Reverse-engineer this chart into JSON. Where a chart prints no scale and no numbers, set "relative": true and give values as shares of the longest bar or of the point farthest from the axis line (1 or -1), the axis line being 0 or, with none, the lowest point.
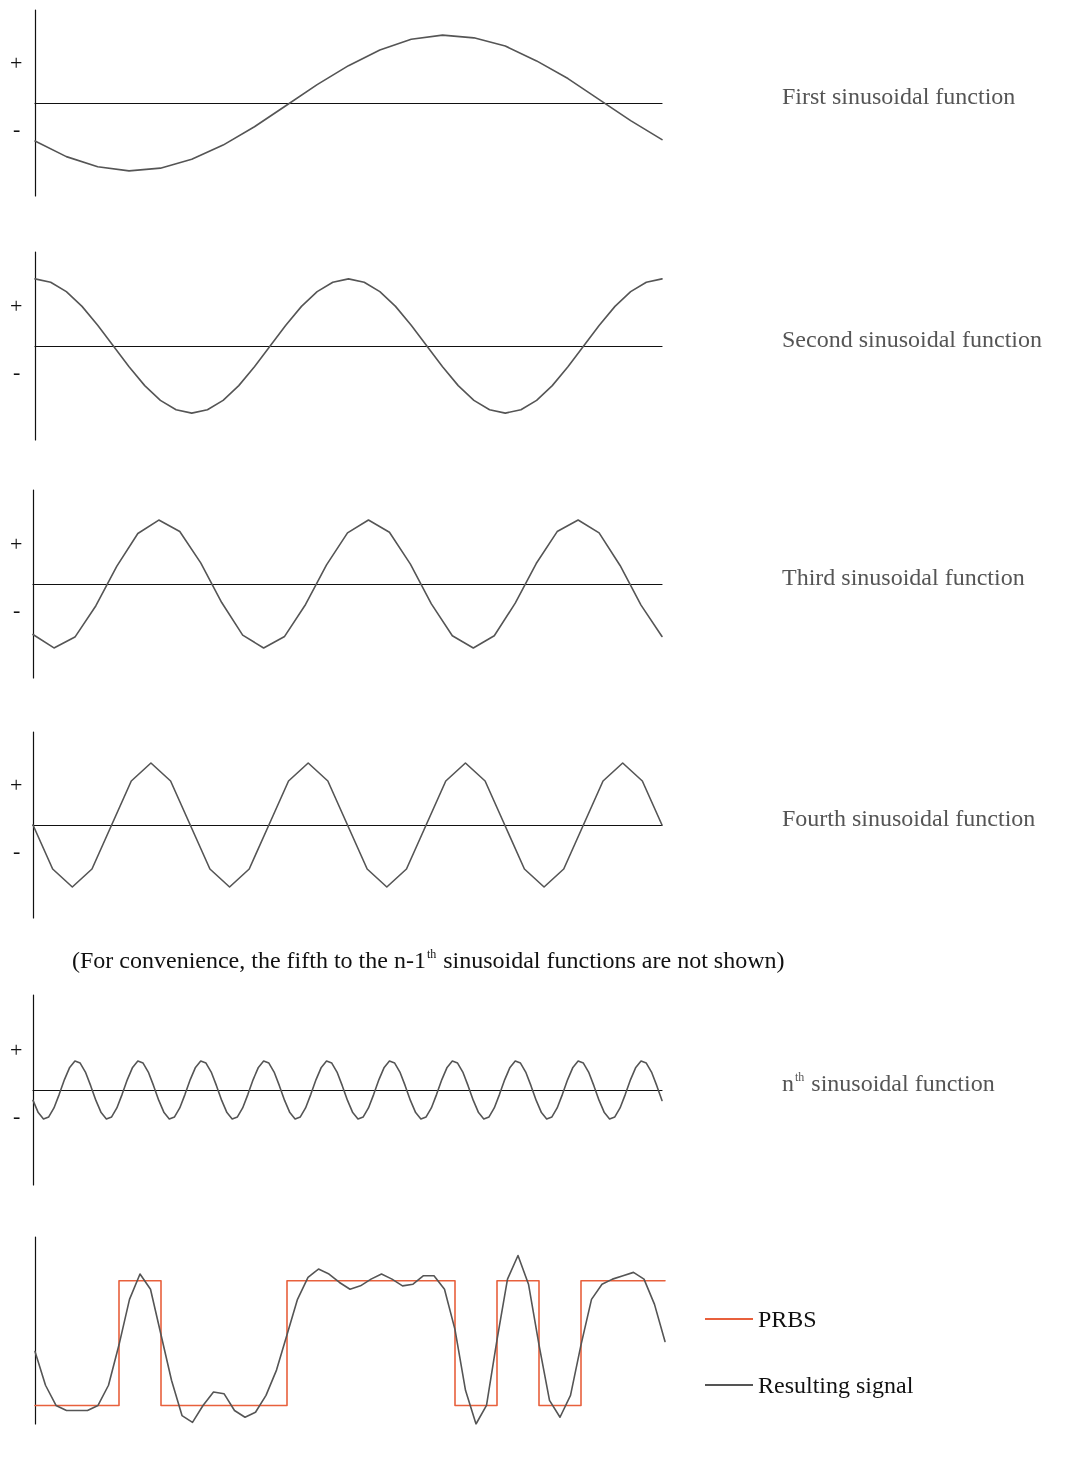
{
  "chart_data": [
    {
      "type": "line",
      "relative": true,
      "categories": [
        null,
        null,
        null,
        null,
        null,
        null,
        null,
        null,
        null,
        null,
        null,
        null,
        null,
        null,
        null,
        null,
        null,
        null,
        null,
        null,
        null
      ],
      "series": [
        {
          "name": "First sinusoidal function",
          "color": "#555555",
          "values": [
            -0.56,
            -0.79,
            -0.94,
            -1.0,
            -0.96,
            -0.83,
            -0.62,
            -0.35,
            -0.04,
            0.27,
            0.55,
            0.78,
            0.94,
            1.0,
            0.96,
            0.84,
            0.62,
            0.36,
            0.05,
            -0.26,
            -0.54
          ]
        }
      ],
      "annotations": [
        "+",
        "-"
      ],
      "grid": false,
      "legend": "right",
      "marker": "none"
    },
    {
      "type": "line",
      "relative": true,
      "categories": [
        null,
        null,
        null,
        null,
        null,
        null,
        null,
        null,
        null,
        null,
        null,
        null,
        null,
        null,
        null,
        null,
        null,
        null,
        null,
        null,
        null,
        null,
        null,
        null,
        null,
        null,
        null,
        null,
        null,
        null,
        null,
        null,
        null,
        null,
        null,
        null,
        null,
        null,
        null,
        null,
        null
      ],
      "series": [
        {
          "name": "Second sinusoidal function",
          "color": "#555555",
          "values": [
            1,
            0.95,
            0.81,
            0.59,
            0.31,
            0,
            -0.31,
            -0.59,
            -0.81,
            -0.95,
            -1,
            -0.95,
            -0.81,
            -0.59,
            -0.31,
            0,
            0.31,
            0.59,
            0.81,
            0.95,
            1,
            0.95,
            0.81,
            0.59,
            0.31,
            0,
            -0.31,
            -0.59,
            -0.81,
            -0.95,
            -1,
            -0.95,
            -0.81,
            -0.59,
            -0.31,
            0,
            0.31,
            0.59,
            0.81,
            0.95,
            1
          ]
        }
      ],
      "annotations": [
        "+",
        "-"
      ],
      "grid": false,
      "legend": "right",
      "marker": "none"
    },
    {
      "type": "line",
      "relative": true,
      "categories": [
        null,
        null,
        null,
        null,
        null,
        null,
        null,
        null,
        null,
        null,
        null,
        null,
        null,
        null,
        null,
        null,
        null,
        null,
        null,
        null,
        null,
        null,
        null,
        null,
        null,
        null,
        null,
        null,
        null,
        null,
        null
      ],
      "series": [
        {
          "name": "Third sinusoidal function",
          "color": "#555555",
          "values": [
            -0.79,
            -1.0,
            -0.83,
            -0.34,
            0.28,
            0.79,
            1.0,
            0.82,
            0.33,
            -0.29,
            -0.8,
            -1.0,
            -0.82,
            -0.32,
            0.3,
            0.8,
            1.0,
            0.81,
            0.31,
            -0.31,
            -0.81,
            -1.0,
            -0.81,
            -0.3,
            0.32,
            0.82,
            1.0,
            0.8,
            0.29,
            -0.33,
            -0.82
          ]
        }
      ],
      "annotations": [
        "+",
        "-"
      ],
      "grid": false,
      "legend": "right",
      "marker": "none"
    },
    {
      "type": "line",
      "relative": true,
      "categories": [
        null,
        null,
        null,
        null,
        null,
        null,
        null,
        null,
        null,
        null,
        null,
        null,
        null,
        null,
        null,
        null,
        null,
        null,
        null,
        null,
        null,
        null,
        null,
        null,
        null,
        null,
        null,
        null,
        null,
        null,
        null,
        null,
        null
      ],
      "series": [
        {
          "name": "Fourth sinusoidal function",
          "color": "#555555",
          "values": [
            0,
            -0.71,
            -1,
            -0.71,
            0,
            0.71,
            1,
            0.71,
            0,
            -0.71,
            -1,
            -0.71,
            0,
            0.71,
            1,
            0.71,
            0,
            -0.71,
            -1,
            -0.71,
            0,
            0.71,
            1,
            0.71,
            0,
            -0.71,
            -1,
            -0.71,
            0,
            0.71,
            1,
            0.71,
            0
          ]
        }
      ],
      "annotations": [
        "+",
        "-",
        "(For convenience, the fifth to the n-1$^{th}$ sinusoidal functions are not shown)"
      ],
      "grid": false,
      "legend": "right",
      "marker": "none"
    },
    {
      "type": "line",
      "relative": true,
      "categories": [
        null,
        null,
        null,
        null,
        null,
        null,
        null,
        null,
        null,
        null,
        null,
        null,
        null,
        null,
        null,
        null,
        null,
        null,
        null,
        null,
        null,
        null,
        null,
        null,
        null,
        null,
        null,
        null,
        null,
        null,
        null,
        null,
        null,
        null,
        null,
        null,
        null,
        null,
        null,
        null,
        null,
        null,
        null,
        null,
        null,
        null,
        null,
        null,
        null,
        null,
        null,
        null,
        null,
        null,
        null,
        null,
        null,
        null,
        null,
        null,
        null,
        null,
        null,
        null,
        null,
        null,
        null,
        null,
        null,
        null,
        null,
        null,
        null,
        null,
        null,
        null,
        null,
        null,
        null,
        null,
        null,
        null,
        null,
        null,
        null,
        null,
        null,
        null,
        null,
        null,
        null,
        null,
        null,
        null,
        null,
        null,
        null,
        null,
        null,
        null,
        null,
        null,
        null,
        null,
        null,
        null,
        null,
        null,
        null,
        null,
        null,
        null,
        null,
        null,
        null,
        null,
        null,
        null,
        null,
        null,
        null
      ],
      "series": [
        {
          "name": "n$^{th}$ sinusoidal function",
          "color": "#555555",
          "values": [
            -0.36,
            -0.78,
            -1,
            -0.93,
            -0.62,
            -0.15,
            0.36,
            0.78,
            1,
            0.93,
            0.62,
            0.15,
            -0.36,
            -0.78,
            -1,
            -0.93,
            -0.62,
            -0.15,
            0.36,
            0.78,
            1,
            0.93,
            0.62,
            0.15,
            -0.36,
            -0.78,
            -1,
            -0.93,
            -0.62,
            -0.15,
            0.36,
            0.78,
            1,
            0.93,
            0.62,
            0.15,
            -0.36,
            -0.78,
            -1,
            -0.93,
            -0.62,
            -0.15,
            0.36,
            0.78,
            1,
            0.93,
            0.62,
            0.15,
            -0.36,
            -0.78,
            -1,
            -0.93,
            -0.62,
            -0.15,
            0.36,
            0.78,
            1,
            0.93,
            0.62,
            0.15,
            -0.36,
            -0.78,
            -1,
            -0.93,
            -0.62,
            -0.15,
            0.36,
            0.78,
            1,
            0.93,
            0.62,
            0.15,
            -0.36,
            -0.78,
            -1,
            -0.93,
            -0.62,
            -0.15,
            0.36,
            0.78,
            1,
            0.93,
            0.62,
            0.15,
            -0.36,
            -0.78,
            -1,
            -0.93,
            -0.62,
            -0.15,
            0.36,
            0.78,
            1,
            0.93,
            0.62,
            0.15,
            -0.36,
            -0.78,
            -1,
            -0.93,
            -0.62,
            -0.15,
            0.36,
            0.78,
            1,
            0.93,
            0.62,
            0.15,
            -0.36,
            -0.78,
            -1,
            -0.93,
            -0.62,
            -0.15,
            0.36,
            0.78,
            1,
            0.93,
            0.62,
            0.15,
            -0.36
          ]
        }
      ],
      "annotations": [
        "+",
        "-"
      ],
      "grid": false,
      "legend": "right",
      "marker": "none"
    },
    {
      "type": "line",
      "relative": true,
      "categories": [
        null,
        null,
        null,
        null,
        null,
        null,
        null,
        null,
        null,
        null,
        null,
        null,
        null,
        null,
        null,
        null,
        null,
        null,
        null,
        null,
        null,
        null,
        null,
        null,
        null,
        null,
        null,
        null,
        null,
        null,
        null,
        null,
        null,
        null,
        null,
        null,
        null,
        null,
        null,
        null,
        null,
        null,
        null,
        null,
        null,
        null,
        null,
        null,
        null,
        null,
        null,
        null,
        null,
        null,
        null,
        null,
        null,
        null,
        null,
        null,
        null
      ],
      "series": [
        {
          "name": "PRBS",
          "type": "step",
          "color": "#e8603c",
          "values": [
            0.11,
            0.11,
            0.11,
            0.11,
            0.11,
            0.11,
            0.11,
            0.11,
            0.85,
            0.85,
            0.85,
            0.85,
            0.11,
            0.11,
            0.11,
            0.11,
            0.11,
            0.11,
            0.11,
            0.11,
            0.11,
            0.11,
            0.11,
            0.11,
            0.85,
            0.85,
            0.85,
            0.85,
            0.85,
            0.85,
            0.85,
            0.85,
            0.85,
            0.85,
            0.85,
            0.85,
            0.85,
            0.85,
            0.85,
            0.85,
            0.11,
            0.11,
            0.11,
            0.11,
            0.85,
            0.85,
            0.85,
            0.85,
            0.11,
            0.11,
            0.11,
            0.11,
            0.85,
            0.85,
            0.85,
            0.85,
            0.85,
            0.85,
            0.85,
            0.85,
            0.85
          ]
        },
        {
          "name": "Resulting signal",
          "color": "#555555",
          "values": [
            0.43,
            0.23,
            0.11,
            0.08,
            0.08,
            0.08,
            0.11,
            0.23,
            0.47,
            0.74,
            0.89,
            0.8,
            0.53,
            0.26,
            0.05,
            0.01,
            0.11,
            0.19,
            0.18,
            0.08,
            0.04,
            0.07,
            0.17,
            0.32,
            0.53,
            0.74,
            0.87,
            0.92,
            0.89,
            0.84,
            0.8,
            0.82,
            0.86,
            0.89,
            0.86,
            0.82,
            0.83,
            0.88,
            0.88,
            0.8,
            0.56,
            0.2,
            0,
            0.11,
            0.5,
            0.86,
            1.0,
            0.83,
            0.47,
            0.14,
            0.04,
            0.17,
            0.47,
            0.74,
            0.83,
            0.86,
            0.88,
            0.9,
            0.86,
            0.71,
            0.49
          ]
        }
      ],
      "grid": false,
      "legend": "right",
      "marker": "none"
    }
  ]
}
